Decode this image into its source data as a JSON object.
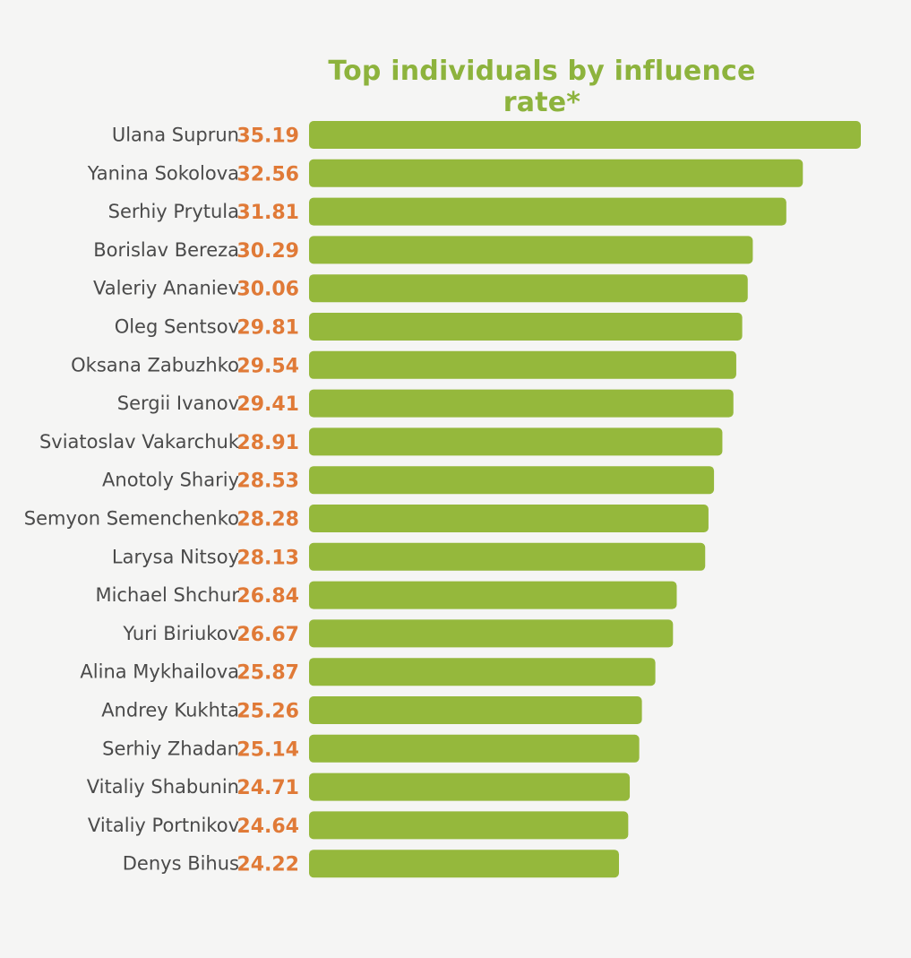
{
  "chart_data": {
    "type": "bar",
    "orientation": "horizontal",
    "title": "Top individuals by influence rate*",
    "xlabel": "",
    "ylabel": "",
    "grid": false,
    "legend": "none",
    "categories": [
      "Ulana Suprun",
      "Yanina Sokolova",
      "Serhiy Prytula",
      "Borislav Bereza",
      "Valeriy Ananiev",
      "Oleg Sentsov",
      "Oksana Zabuzhko",
      "Sergii Ivanov",
      "Sviatoslav Vakarchuk",
      "Anotoly Shariy",
      "Semyon Semenchenko",
      "Larysa Nitsoy",
      "Michael Shchur",
      "Yuri Biriukov",
      "Alina Mykhailova",
      "Andrey Kukhta",
      "Serhiy Zhadan",
      "Vitaliy Shabunin",
      "Vitaliy Portnikov",
      "Denys Bihus"
    ],
    "values": [
      35.19,
      32.56,
      31.81,
      30.29,
      30.06,
      29.81,
      29.54,
      29.41,
      28.91,
      28.53,
      28.28,
      28.13,
      26.84,
      26.67,
      25.87,
      25.26,
      25.14,
      24.71,
      24.64,
      24.22
    ],
    "value_labels": [
      "35.19",
      "32.56",
      "31.81",
      "30.29",
      "30.06",
      "29.81",
      "29.54",
      "29.41",
      "28.91",
      "28.53",
      "28.28",
      "28.13",
      "26.84",
      "26.67",
      "25.87",
      "25.26",
      "25.14",
      "24.71",
      "24.64",
      "24.22"
    ],
    "colors": {
      "bar": "#95b83c",
      "value_label": "#e07a37",
      "name_label": "#4a4a4a",
      "title": "#8db33d"
    }
  }
}
